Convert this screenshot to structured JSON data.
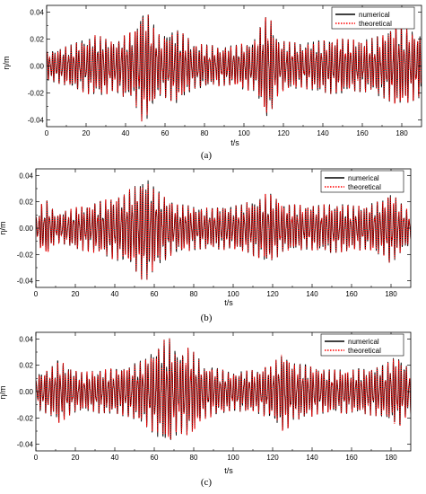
{
  "chart_data": [
    {
      "type": "line",
      "xlabel": "t/s",
      "ylabel": "η/m",
      "xlim": [
        0,
        190
      ],
      "ylim": [
        -0.045,
        0.045
      ],
      "xticks": [
        "0",
        "20",
        "40",
        "60",
        "80",
        "100",
        "120",
        "140",
        "160",
        "180"
      ],
      "yticks": [
        "-0.04",
        "-0.02",
        "0.00",
        "0.02",
        "0.04"
      ],
      "legend_position": "top-right",
      "caption": "(a)",
      "series": [
        {
          "name": "numerical",
          "color": "#000000",
          "style": "solid"
        },
        {
          "name": "theoretical",
          "color": "#ff0000",
          "style": "dotted"
        }
      ],
      "envelope": {
        "t": [
          0,
          10,
          25,
          35,
          45,
          49,
          52,
          58,
          65,
          75,
          90,
          105,
          112,
          118,
          130,
          145,
          160,
          170,
          178,
          183,
          190
        ],
        "amp": [
          0.01,
          0.014,
          0.022,
          0.018,
          0.028,
          0.042,
          0.035,
          0.02,
          0.028,
          0.016,
          0.014,
          0.018,
          0.038,
          0.018,
          0.016,
          0.02,
          0.018,
          0.022,
          0.03,
          0.026,
          0.022
        ]
      },
      "tail_start": 190
    },
    {
      "type": "line",
      "xlabel": "t/s",
      "ylabel": "η/m",
      "xlim": [
        0,
        190
      ],
      "ylim": [
        -0.045,
        0.045
      ],
      "xticks": [
        "0",
        "20",
        "40",
        "60",
        "80",
        "100",
        "120",
        "140",
        "160",
        "180"
      ],
      "yticks": [
        "-0.04",
        "-0.02",
        "0.00",
        "0.02",
        "0.04"
      ],
      "legend_position": "top-right",
      "caption": "(b)",
      "series": [
        {
          "name": "numerical",
          "color": "#000000",
          "style": "solid"
        },
        {
          "name": "theoretical",
          "color": "#ff0000",
          "style": "dotted"
        }
      ],
      "envelope": {
        "t": [
          0,
          3,
          6,
          10,
          20,
          30,
          42,
          50,
          55,
          60,
          70,
          85,
          100,
          110,
          118,
          125,
          140,
          150,
          165,
          175,
          180,
          185,
          190
        ],
        "amp": [
          0.008,
          0.018,
          0.02,
          0.01,
          0.015,
          0.018,
          0.024,
          0.03,
          0.04,
          0.03,
          0.018,
          0.015,
          0.016,
          0.02,
          0.026,
          0.018,
          0.016,
          0.018,
          0.016,
          0.02,
          0.026,
          0.018,
          0.012
        ]
      },
      "tail_start": 190
    },
    {
      "type": "line",
      "xlabel": "t/s",
      "ylabel": "η/m",
      "xlim": [
        0,
        190
      ],
      "ylim": [
        -0.045,
        0.045
      ],
      "xticks": [
        "0",
        "20",
        "40",
        "60",
        "80",
        "100",
        "120",
        "140",
        "160",
        "180"
      ],
      "yticks": [
        "-0.04",
        "-0.02",
        "0.00",
        "0.02",
        "0.04"
      ],
      "legend_position": "top-right",
      "caption": "(c)",
      "series": [
        {
          "name": "numerical",
          "color": "#000000",
          "style": "solid"
        },
        {
          "name": "theoretical",
          "color": "#ff0000",
          "style": "dotted"
        }
      ],
      "envelope": {
        "t": [
          0,
          8,
          12,
          16,
          22,
          35,
          45,
          55,
          62,
          67,
          72,
          78,
          85,
          100,
          112,
          120,
          126,
          130,
          145,
          160,
          175,
          183,
          190
        ],
        "amp": [
          0.012,
          0.018,
          0.024,
          0.018,
          0.014,
          0.016,
          0.018,
          0.024,
          0.034,
          0.04,
          0.03,
          0.032,
          0.02,
          0.014,
          0.016,
          0.02,
          0.03,
          0.022,
          0.016,
          0.016,
          0.018,
          0.026,
          0.016
        ]
      },
      "tail_start": 190
    }
  ]
}
